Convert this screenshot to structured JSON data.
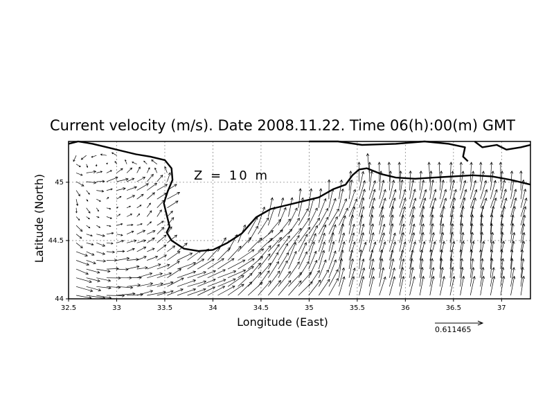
{
  "chart_data": {
    "type": "vector-field",
    "title": "Current velocity (m/s). Date 2008.11.22. Time 06(h):00(m) GMT",
    "annotation": "Z = 10 m",
    "xlabel": "Longitude (East)",
    "ylabel": "Latitude (North)",
    "xlim": [
      32.5,
      37.3
    ],
    "ylim": [
      44.0,
      45.35
    ],
    "xticks": [
      "32.5",
      "33",
      "33.5",
      "34",
      "34.5",
      "35",
      "35.5",
      "36",
      "36.5",
      "37"
    ],
    "yticks": [
      "44",
      "44.5",
      "45"
    ],
    "grid": true,
    "reference_vector": {
      "label": "0.611465",
      "value": 0.611465
    },
    "coastline_crimea": [
      [
        32.5,
        45.33
      ],
      [
        32.6,
        45.35
      ],
      [
        32.75,
        45.33
      ],
      [
        32.9,
        45.3
      ],
      [
        33.05,
        45.27
      ],
      [
        33.2,
        45.24
      ],
      [
        33.35,
        45.22
      ],
      [
        33.5,
        45.19
      ],
      [
        33.57,
        45.12
      ],
      [
        33.58,
        45.02
      ],
      [
        33.53,
        44.92
      ],
      [
        33.49,
        44.82
      ],
      [
        33.52,
        44.72
      ],
      [
        33.55,
        44.62
      ],
      [
        33.52,
        44.57
      ],
      [
        33.57,
        44.5
      ],
      [
        33.7,
        44.43
      ],
      [
        33.85,
        44.41
      ],
      [
        34.0,
        44.42
      ],
      [
        34.15,
        44.48
      ],
      [
        34.3,
        44.56
      ],
      [
        34.45,
        44.7
      ],
      [
        34.6,
        44.77
      ],
      [
        34.75,
        44.8
      ],
      [
        34.9,
        44.83
      ],
      [
        35.0,
        44.85
      ],
      [
        35.1,
        44.87
      ],
      [
        35.25,
        44.94
      ],
      [
        35.38,
        44.98
      ],
      [
        35.45,
        45.06
      ],
      [
        35.52,
        45.11
      ],
      [
        35.6,
        45.12
      ],
      [
        35.75,
        45.07
      ],
      [
        35.9,
        45.04
      ],
      [
        36.1,
        45.03
      ],
      [
        36.3,
        45.04
      ],
      [
        36.5,
        45.05
      ],
      [
        36.7,
        45.06
      ],
      [
        36.9,
        45.05
      ],
      [
        37.1,
        45.02
      ],
      [
        37.3,
        44.98
      ]
    ],
    "coastline_kerch": [
      [
        35.0,
        45.35
      ],
      [
        35.3,
        45.35
      ],
      [
        35.55,
        45.32
      ],
      [
        35.9,
        45.33
      ],
      [
        36.2,
        45.35
      ],
      [
        36.45,
        45.33
      ],
      [
        36.62,
        45.3
      ],
      [
        36.6,
        45.22
      ],
      [
        36.65,
        45.18
      ]
    ],
    "coastline_taman": [
      [
        36.72,
        45.35
      ],
      [
        36.8,
        45.3
      ],
      [
        36.95,
        45.32
      ],
      [
        37.05,
        45.28
      ],
      [
        37.2,
        45.3
      ],
      [
        37.3,
        45.32
      ]
    ]
  }
}
